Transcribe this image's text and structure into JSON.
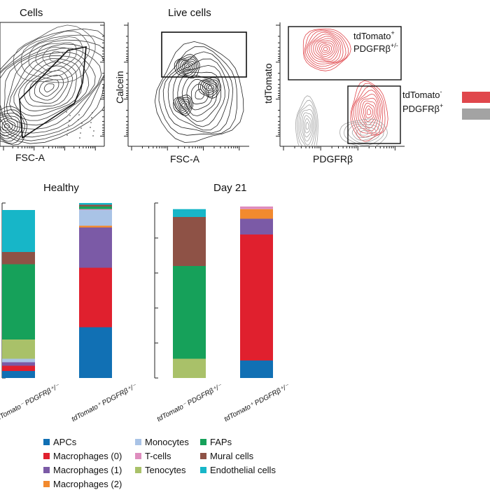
{
  "flow": {
    "panels": [
      {
        "title": "Cells",
        "xlabel": "FSC-A",
        "ylabel": ""
      },
      {
        "title": "Live cells",
        "xlabel": "FSC-A",
        "ylabel": "Calcein"
      },
      {
        "title": "",
        "xlabel": "PDGFRβ",
        "ylabel": "tdTomato"
      }
    ],
    "gates": {
      "top": {
        "line1": "tdTomato",
        "sup1": "+",
        "line2": "PDGFRβ",
        "sup2": "+/-"
      },
      "bottom": {
        "line1": "tdTomato",
        "sup1": "-",
        "line2": "PDGFRβ",
        "sup2": "+"
      }
    },
    "colors": {
      "red_population": "#e0474c",
      "grey_population": "#a3a3a3"
    }
  },
  "chart_data": [
    {
      "type": "bar",
      "stacked": true,
      "title": "Healthy",
      "categories": [
        "tdTomato⁻ PDGFRβ⁺/⁻",
        "tdTomato⁺ PDGFRβ⁺/⁻"
      ],
      "ylim": [
        0,
        100
      ],
      "series": [
        {
          "name": "APCs",
          "values": [
            4,
            29
          ]
        },
        {
          "name": "Macrophages (0)",
          "values": [
            3,
            34
          ]
        },
        {
          "name": "Macrophages (1)",
          "values": [
            2,
            23
          ]
        },
        {
          "name": "Macrophages (2)",
          "values": [
            0,
            1
          ]
        },
        {
          "name": "Monocytes",
          "values": [
            2,
            9
          ]
        },
        {
          "name": "T-cells",
          "values": [
            0,
            0.5
          ]
        },
        {
          "name": "Tenocytes",
          "values": [
            11,
            0
          ]
        },
        {
          "name": "FAPs",
          "values": [
            43,
            1.5
          ]
        },
        {
          "name": "Mural cells",
          "values": [
            7,
            1
          ]
        },
        {
          "name": "Endothelial cells",
          "values": [
            24,
            1
          ]
        }
      ]
    },
    {
      "type": "bar",
      "stacked": true,
      "title": "Day 21",
      "categories": [
        "tdTomato⁻ PDGFRβ⁺/⁻",
        "tdTomato⁺ PDGFRβ⁺/⁻"
      ],
      "ylim": [
        0,
        100
      ],
      "series": [
        {
          "name": "APCs",
          "values": [
            0,
            10
          ]
        },
        {
          "name": "Macrophages (0)",
          "values": [
            0,
            72
          ]
        },
        {
          "name": "Macrophages (1)",
          "values": [
            0,
            9
          ]
        },
        {
          "name": "Macrophages (2)",
          "values": [
            0,
            5.5
          ]
        },
        {
          "name": "Monocytes",
          "values": [
            0,
            0
          ]
        },
        {
          "name": "T-cells",
          "values": [
            0,
            1.5
          ]
        },
        {
          "name": "Tenocytes",
          "values": [
            11,
            0
          ]
        },
        {
          "name": "FAPs",
          "values": [
            53,
            0
          ]
        },
        {
          "name": "Mural cells",
          "values": [
            28,
            0
          ]
        },
        {
          "name": "Endothelial cells",
          "values": [
            4.5,
            0
          ]
        }
      ]
    }
  ],
  "legend": [
    {
      "name": "APCs",
      "color": "#1170b4"
    },
    {
      "name": "Macrophages (0)",
      "color": "#e0202e"
    },
    {
      "name": "Macrophages (1)",
      "color": "#7b5aa6"
    },
    {
      "name": "Macrophages (2)",
      "color": "#f28a2e"
    },
    {
      "name": "Monocytes",
      "color": "#a9c3e6"
    },
    {
      "name": "T-cells",
      "color": "#de8dbe"
    },
    {
      "name": "Tenocytes",
      "color": "#a9c169"
    },
    {
      "name": "FAPs",
      "color": "#16a15a"
    },
    {
      "name": "Mural cells",
      "color": "#8e5246"
    },
    {
      "name": "Endothelial cells",
      "color": "#17b6c8"
    }
  ]
}
